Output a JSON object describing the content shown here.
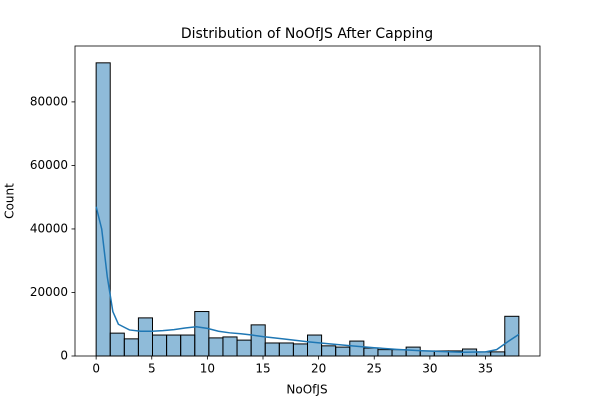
{
  "chart_data": {
    "type": "histogram",
    "title": "Distribution of NoOfJS After Capping",
    "x_label": "NoOfJS",
    "y_label": "Count",
    "bins": [
      0,
      1.2667,
      2.5333,
      3.8,
      5.0667,
      6.3333,
      7.6,
      8.8667,
      10.1333,
      11.4,
      12.6667,
      13.9333,
      15.2,
      16.4667,
      17.7333,
      19,
      20.2667,
      21.5333,
      22.8,
      24.0667,
      25.3333,
      26.6,
      27.8667,
      29.1333,
      30.4,
      31.6667,
      32.9333,
      34.2,
      35.4667,
      36.7333,
      38
    ],
    "values": [
      92300,
      7200,
      5400,
      12000,
      6600,
      6600,
      6600,
      14000,
      5700,
      6000,
      5000,
      9800,
      4100,
      4100,
      3800,
      6600,
      3200,
      2800,
      4700,
      2500,
      2000,
      2000,
      2800,
      1600,
      1600,
      1600,
      2200,
      1300,
      1300,
      12500
    ],
    "color": "rgba(31,119,180,0.5)",
    "edge_color": "#000000",
    "kde": {
      "color": "#1f77b4",
      "x": [
        0,
        0.5,
        1,
        1.5,
        2,
        3,
        4,
        5,
        6,
        7,
        8,
        9,
        10,
        11,
        12,
        13,
        14,
        15,
        17,
        19,
        21,
        23,
        25,
        27,
        29,
        31,
        33,
        35,
        36,
        37,
        38
      ],
      "values": [
        47000,
        40000,
        25000,
        14000,
        10000,
        8200,
        7800,
        7800,
        8000,
        8300,
        8800,
        9200,
        8700,
        7800,
        7300,
        7000,
        6600,
        6100,
        5300,
        4500,
        3800,
        3200,
        2600,
        2100,
        1700,
        1400,
        1200,
        1300,
        2000,
        4500,
        6800
      ]
    },
    "xlim": [
      -1.9,
      39.9
    ],
    "ylim": [
      0,
      97600
    ],
    "xticks": [
      0,
      5,
      10,
      15,
      20,
      25,
      30,
      35
    ],
    "yticks": [
      0,
      20000,
      40000,
      60000,
      80000
    ],
    "grid": false
  }
}
